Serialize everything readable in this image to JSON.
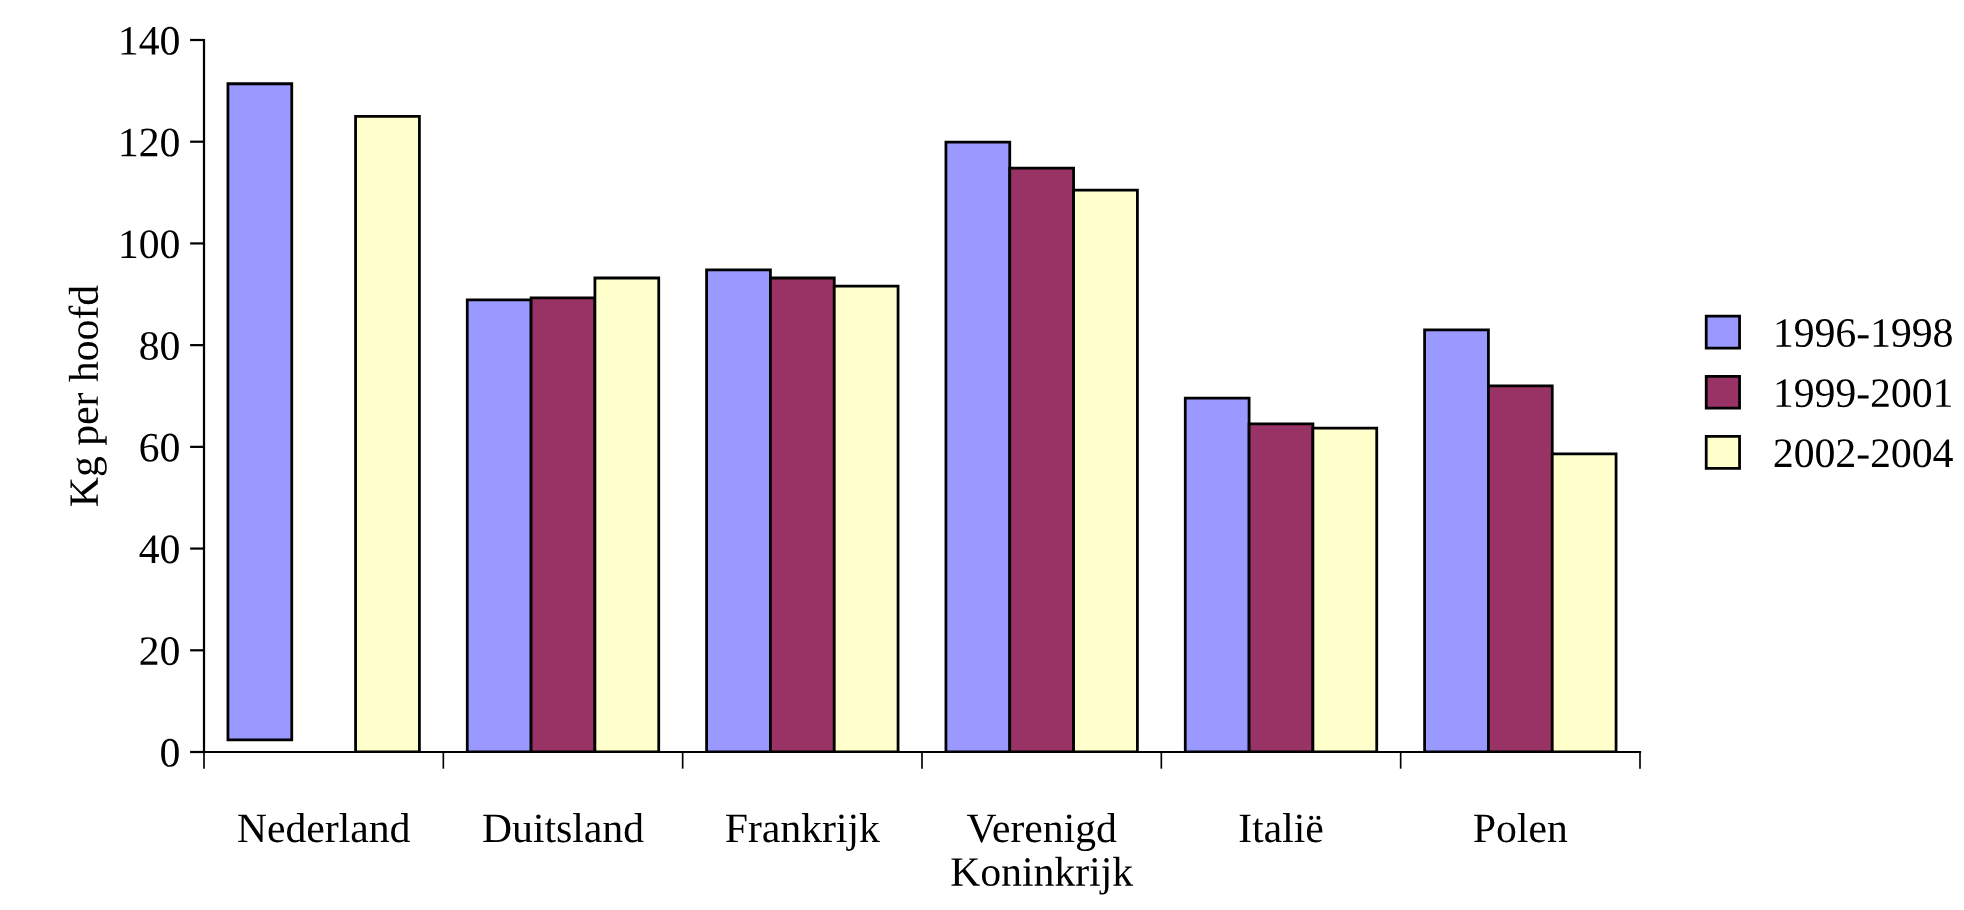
{
  "chart_data": {
    "type": "bar",
    "ylabel": "Kg per hoofd",
    "categories": [
      "Nederland",
      "Duitsland",
      "Frankrijk",
      "Verenigd\nKoninkrijk",
      "Italië",
      "Polen"
    ],
    "series": [
      {
        "name": "1996-1998",
        "color": "#9999ff",
        "values": [
          129,
          88.9,
          94.8,
          119.9,
          69.6,
          83
        ],
        "base": [
          2.4,
          0,
          0,
          0,
          0,
          0
        ]
      },
      {
        "name": "1999-2001",
        "color": "#993366",
        "values": [
          null,
          89.3,
          93.2,
          114.8,
          64.5,
          72
        ]
      },
      {
        "name": "2002-2004",
        "color": "#ffffcc",
        "values": [
          125,
          93.2,
          91.6,
          110.5,
          63.7,
          58.6
        ]
      }
    ],
    "ylim": [
      0,
      140
    ],
    "yticks": [
      0,
      20,
      40,
      60,
      80,
      100,
      120,
      140
    ],
    "grid": false,
    "legend": "right"
  }
}
